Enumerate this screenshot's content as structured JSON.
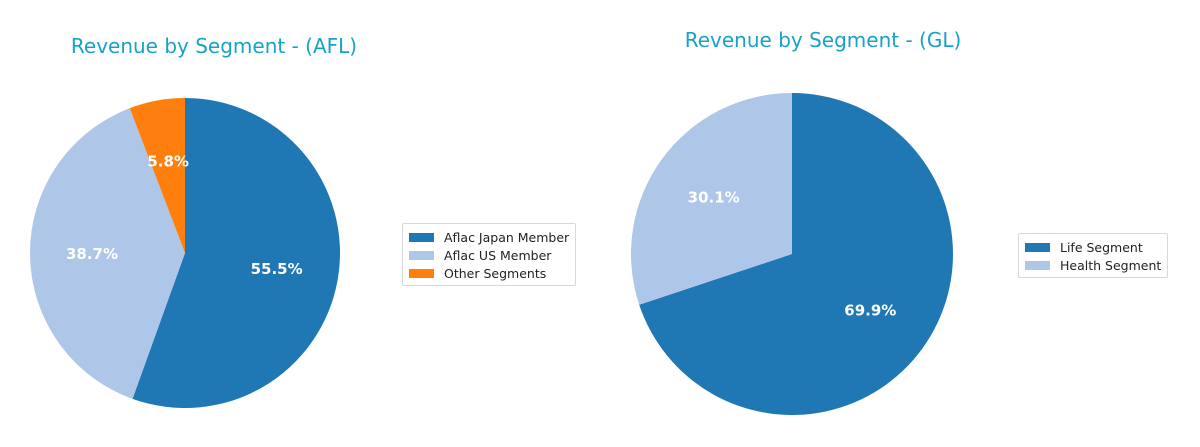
{
  "chart_data": [
    {
      "type": "pie",
      "title": "Revenue by Segment - (AFL)",
      "categories": [
        "Aflac Japan Member",
        "Aflac US Member",
        "Other Segments"
      ],
      "values": [
        55.5,
        38.7,
        5.8
      ],
      "labels": [
        "55.5%",
        "38.7%",
        "5.8%"
      ],
      "colors": [
        "#1f77b4",
        "#aec7e8",
        "#ff7f0e"
      ],
      "start_angle": 90,
      "direction": "clockwise",
      "legend_position": "right"
    },
    {
      "type": "pie",
      "title": "Revenue by Segment - (GL)",
      "categories": [
        "Life Segment",
        "Health Segment"
      ],
      "values": [
        69.9,
        30.1
      ],
      "labels": [
        "69.9%",
        "30.1%"
      ],
      "colors": [
        "#1f77b4",
        "#aec7e8"
      ],
      "start_angle": 90,
      "direction": "clockwise",
      "legend_position": "right"
    }
  ]
}
